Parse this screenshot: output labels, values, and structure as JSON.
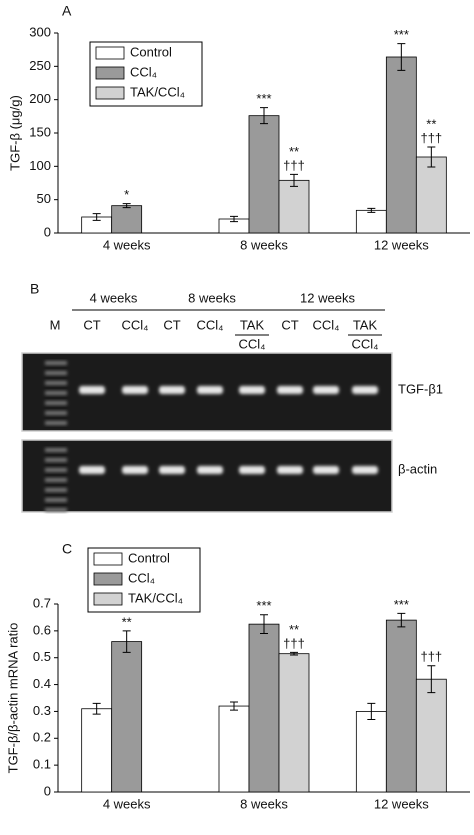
{
  "chart_data": [
    {
      "type": "bar",
      "label": "A",
      "ylabel": "TGF-β (μg/g)",
      "categories": [
        "4 weeks",
        "8 weeks",
        "12 weeks"
      ],
      "ylim": [
        0,
        300
      ],
      "yticks": [
        0,
        50,
        100,
        150,
        200,
        250,
        300
      ],
      "legend": "upper left",
      "series": [
        {
          "name": "Control",
          "color": "#ffffff",
          "values": [
            24,
            21,
            34
          ],
          "errors": [
            5,
            4,
            3
          ],
          "annotations": [
            null,
            null,
            null
          ]
        },
        {
          "name": "CCl₄",
          "color": "#9a9a9a",
          "values": [
            41,
            176,
            264
          ],
          "errors": [
            3,
            12,
            20
          ],
          "annotations": [
            [
              "*"
            ],
            [
              "***"
            ],
            [
              "***"
            ]
          ]
        },
        {
          "name": "TAK/CCl₄",
          "color": "#d2d2d2",
          "values": [
            null,
            79,
            114
          ],
          "errors": [
            null,
            9,
            15
          ],
          "annotations": [
            null,
            [
              "**",
              "†††"
            ],
            [
              "**",
              "†††"
            ]
          ]
        }
      ]
    },
    {
      "type": "bar",
      "label": "C",
      "ylabel": "TGF-β/β-actin mRNA ratio",
      "categories": [
        "4 weeks",
        "8 weeks",
        "12 weeks"
      ],
      "ylim": [
        0,
        0.7
      ],
      "yticks": [
        0,
        0.1,
        0.2,
        0.3,
        0.4,
        0.5,
        0.6,
        0.7
      ],
      "legend": "upper left",
      "series": [
        {
          "name": "Control",
          "color": "#ffffff",
          "values": [
            0.31,
            0.32,
            0.3
          ],
          "errors": [
            0.02,
            0.015,
            0.03
          ],
          "annotations": [
            null,
            null,
            null
          ]
        },
        {
          "name": "CCl₄",
          "color": "#9a9a9a",
          "values": [
            0.56,
            0.625,
            0.64
          ],
          "errors": [
            0.04,
            0.035,
            0.025
          ],
          "annotations": [
            [
              "**"
            ],
            [
              "***"
            ],
            [
              "***"
            ]
          ]
        },
        {
          "name": "TAK/CCl₄",
          "color": "#d2d2d2",
          "values": [
            null,
            0.515,
            0.42
          ],
          "errors": [
            null,
            0.005,
            0.05
          ],
          "annotations": [
            null,
            [
              "**",
              "†††"
            ],
            [
              "†††"
            ]
          ]
        }
      ]
    }
  ],
  "gel": {
    "label": "B",
    "marker": "M",
    "groups": [
      {
        "label": "4 weeks",
        "lanes": [
          {
            "top": "CT"
          },
          {
            "top": "CCl₄"
          }
        ]
      },
      {
        "label": "8 weeks",
        "lanes": [
          {
            "top": "CT"
          },
          {
            "top": "CCl₄"
          },
          {
            "top": "TAK",
            "bottom": "CCl₄"
          }
        ]
      },
      {
        "label": "12 weeks",
        "lanes": [
          {
            "top": "CT"
          },
          {
            "top": "CCl₄"
          },
          {
            "top": "TAK",
            "bottom": "CCl₄"
          }
        ]
      }
    ],
    "rows": [
      "TGF-β1",
      "β-actin"
    ]
  }
}
